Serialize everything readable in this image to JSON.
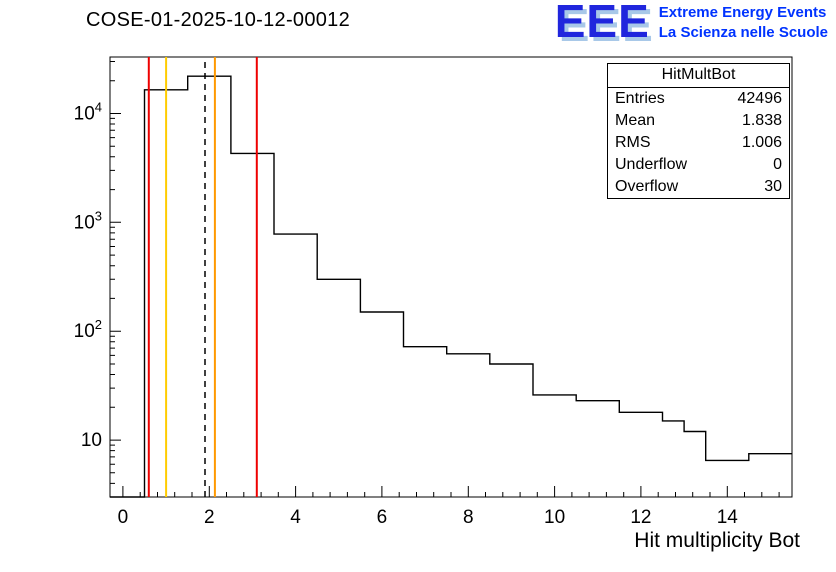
{
  "title": "COSE-01-2025-10-12-00012",
  "logo": {
    "eee": "EEE",
    "line1": "Extreme Energy Events",
    "line2": "La Scienza nelle Scuole",
    "colors": {
      "eee_blue": "#2026dd",
      "eee_shadow": "#a8c8e8",
      "text_blue": "#0033ff"
    }
  },
  "stats": {
    "header": "HitMultBot",
    "rows": [
      [
        "Entries",
        "42496"
      ],
      [
        "Mean",
        "1.838"
      ],
      [
        "RMS",
        "1.006"
      ],
      [
        "Underflow",
        "0"
      ],
      [
        "Overflow",
        "30"
      ]
    ]
  },
  "chart_data": {
    "type": "bar",
    "subtype": "step-histogram",
    "title": "COSE-01-2025-10-12-00012",
    "xlabel": "Hit multiplicity Bot",
    "ylabel": "",
    "y_scale": "log",
    "x_range": [
      -0.3,
      15.5
    ],
    "y_range": [
      3,
      33000
    ],
    "bin_start": 0,
    "bin_width": 0.5,
    "bin_values": [
      0,
      16500,
      16500,
      22000,
      22000,
      4300,
      4300,
      780,
      780,
      300,
      300,
      150,
      150,
      72,
      72,
      62,
      62,
      50,
      50,
      26,
      26,
      23,
      23,
      18,
      18,
      15,
      12,
      6.5,
      6.5,
      7.5,
      7.5
    ],
    "line_color": "#000000",
    "x_ticks": {
      "major": [
        0,
        2,
        4,
        6,
        8,
        10,
        12,
        14
      ],
      "labels": [
        "0",
        "2",
        "4",
        "6",
        "8",
        "10",
        "12",
        "14"
      ],
      "minor_step": 0.4
    },
    "y_ticks": {
      "major": [
        10,
        100,
        1000,
        10000
      ],
      "labels": [
        "10",
        "10^2",
        "10^3",
        "10^4"
      ]
    },
    "markers": [
      {
        "x": 0.6,
        "color": "#ee0000",
        "style": "solid"
      },
      {
        "x": 1.0,
        "color": "#ffcc00",
        "style": "solid"
      },
      {
        "x": 1.9,
        "color": "#000000",
        "style": "dashed"
      },
      {
        "x": 2.13,
        "color": "#ff9900",
        "style": "solid"
      },
      {
        "x": 3.1,
        "color": "#ee0000",
        "style": "solid"
      }
    ],
    "grid": false,
    "legend": "none"
  }
}
